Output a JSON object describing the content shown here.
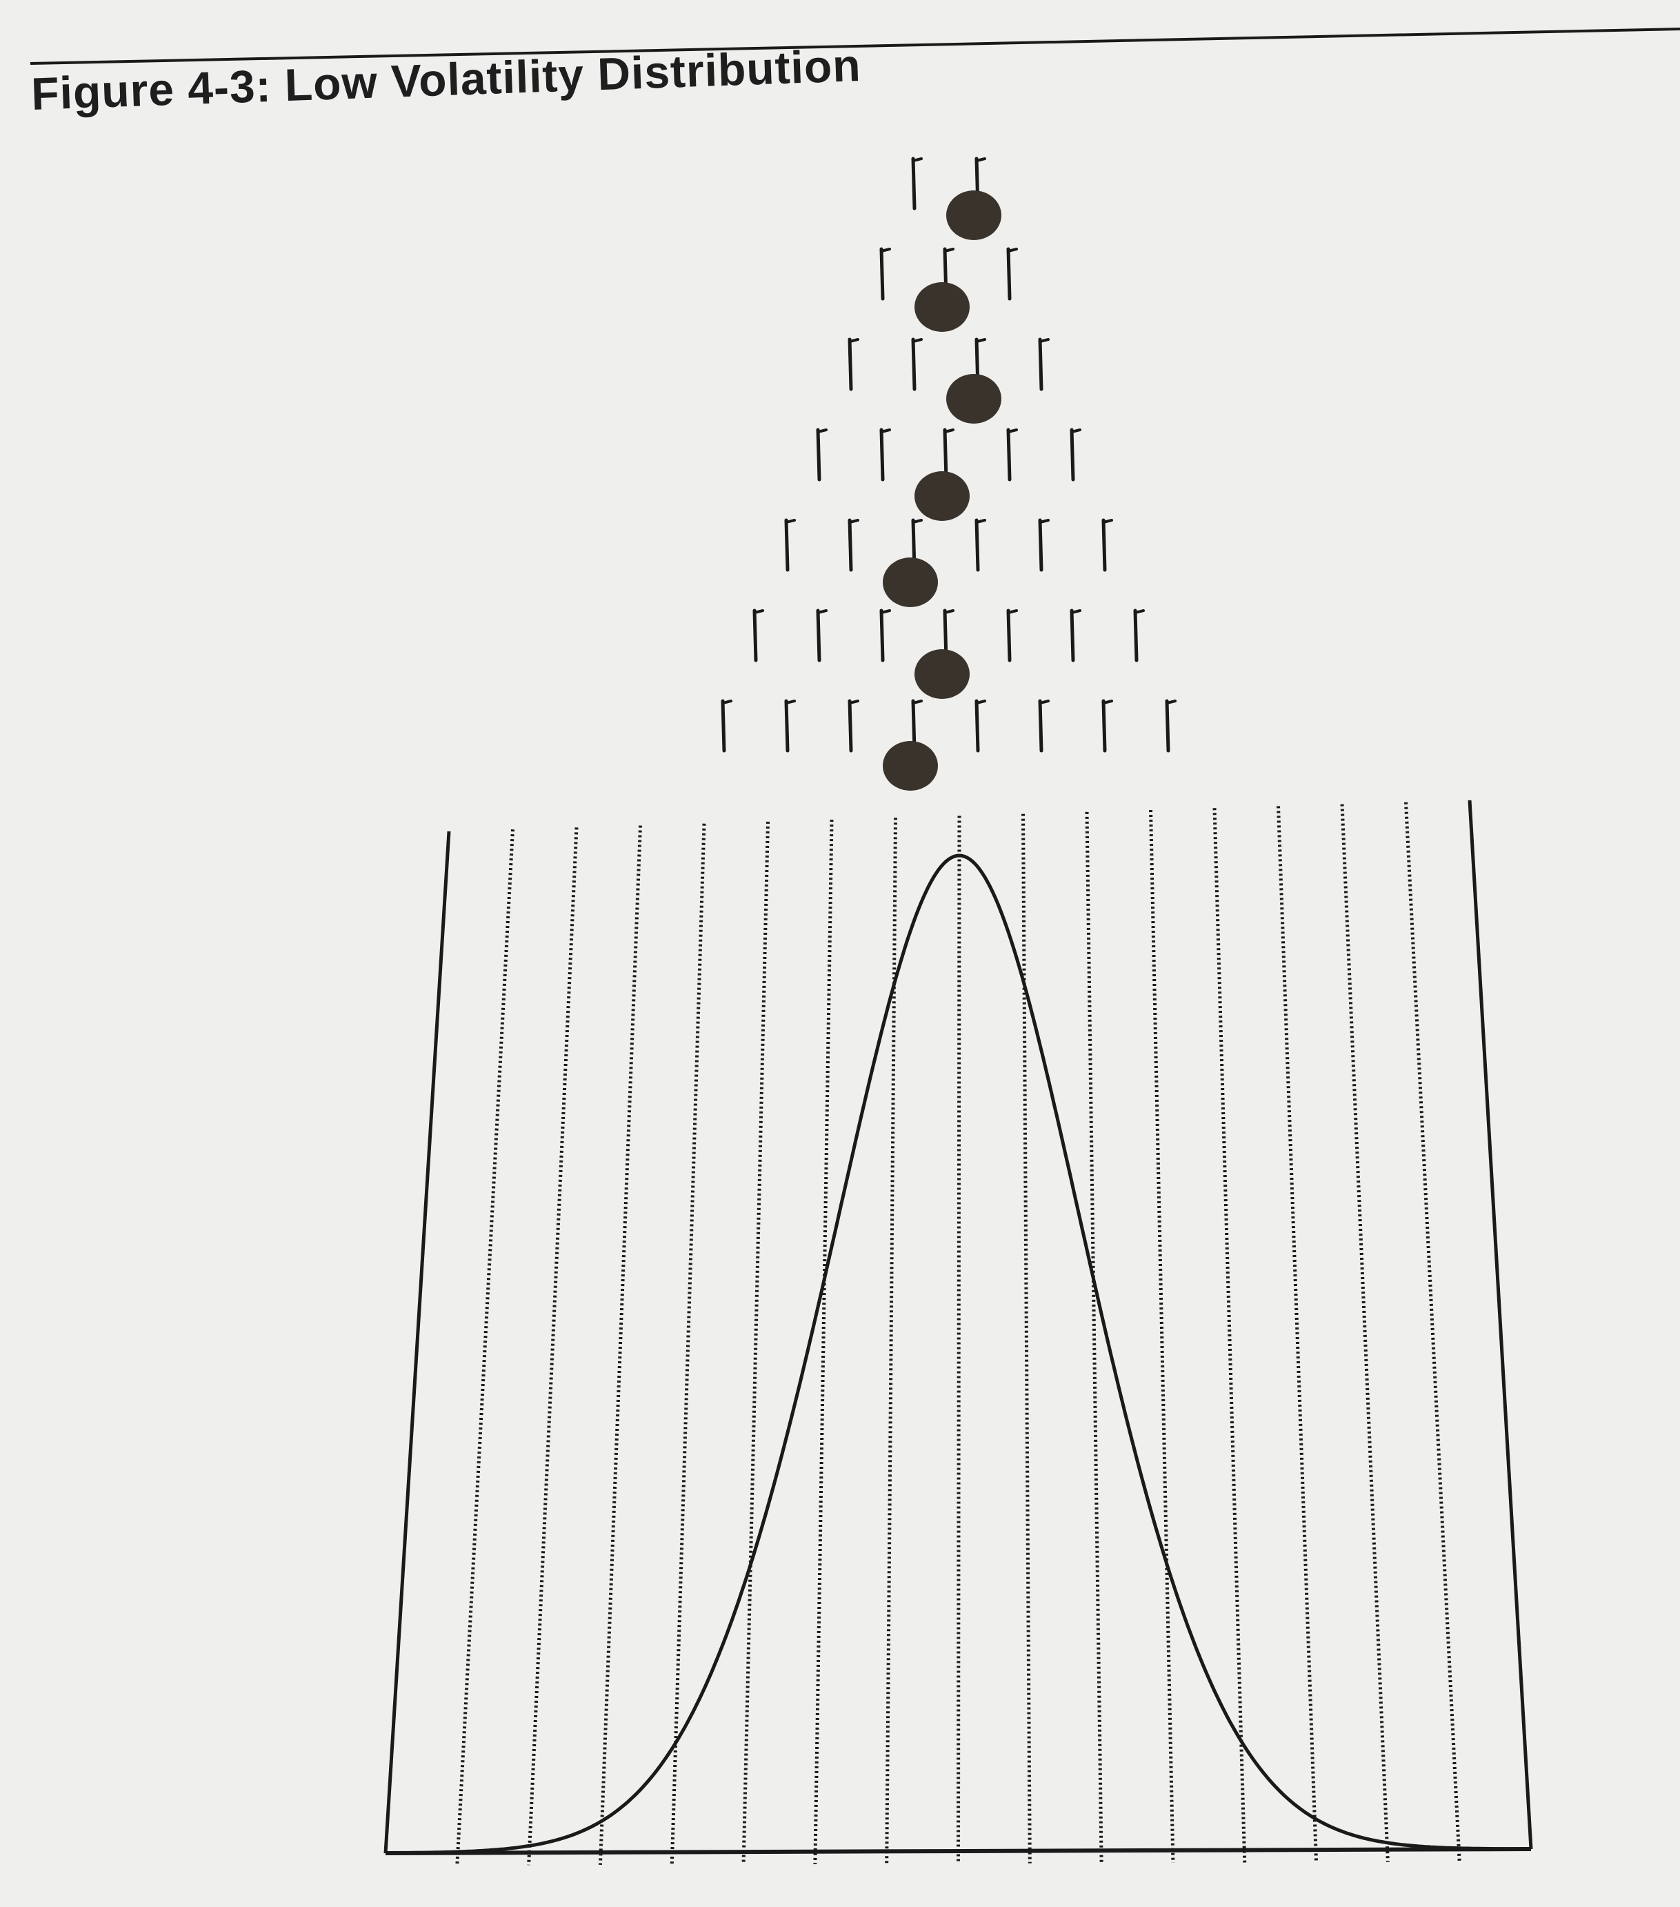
{
  "figure": {
    "title": "Figure 4-3: Low Volatility Distribution"
  },
  "diagram": {
    "type": "galton-board",
    "peg_rows": 7,
    "ball_count": 7,
    "ball_path_steps": [
      0,
      -1,
      1,
      -1,
      -1,
      1,
      -1
    ],
    "bins": 16,
    "curve": "normal",
    "curve_mean_bin": 8.0,
    "curve_sd_bins": 1.9
  },
  "colors": {
    "ink": "#1a1a1a",
    "ball": "#3a332c",
    "paper": "#efefed"
  }
}
